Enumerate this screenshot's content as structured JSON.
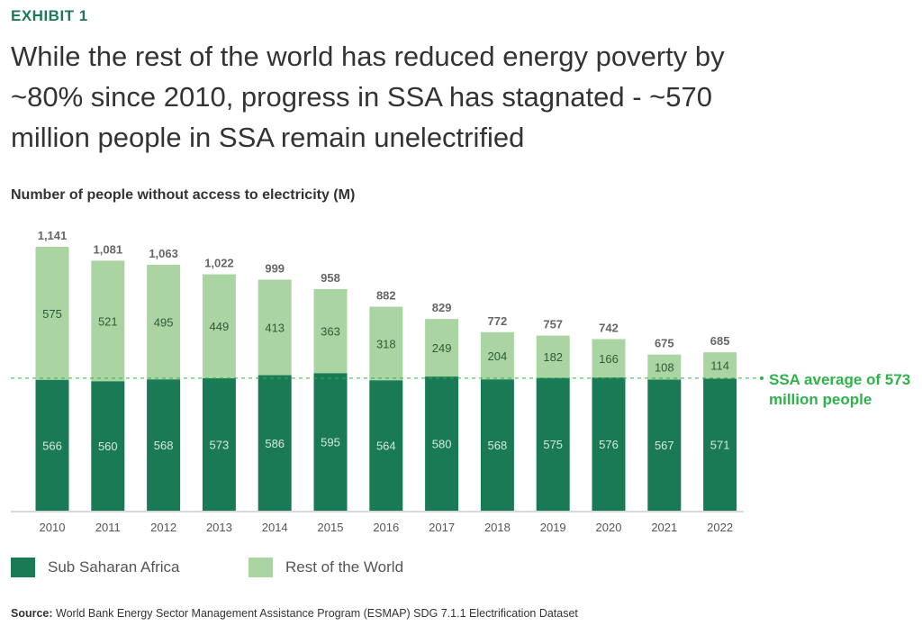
{
  "header": {
    "exhibit": "EXHIBIT 1",
    "title": "While the rest of the world has reduced energy poverty by ~80% since 2010, progress in SSA has stagnated - ~570 million people in SSA remain unelectrified"
  },
  "source": {
    "label": "Source:",
    "text": "World Bank Energy Sector Management Assistance Program (ESMAP) SDG 7.1.1 Electrification Dataset"
  },
  "chart_data": {
    "type": "bar",
    "stacked": true,
    "title": "Number of people without access to electricity (M)",
    "categories": [
      "2010",
      "2011",
      "2012",
      "2013",
      "2014",
      "2015",
      "2016",
      "2017",
      "2018",
      "2019",
      "2020",
      "2021",
      "2022"
    ],
    "series": [
      {
        "name": "Sub Saharan Africa",
        "color": "#1a7a55",
        "values": [
          566,
          560,
          568,
          573,
          586,
          595,
          564,
          580,
          568,
          575,
          576,
          567,
          571
        ]
      },
      {
        "name": "Rest of the World",
        "color": "#aad5a3",
        "values": [
          575,
          521,
          495,
          449,
          413,
          363,
          318,
          249,
          204,
          182,
          166,
          108,
          114
        ]
      }
    ],
    "totals": [
      "1,141",
      "1,081",
      "1,063",
      "1,022",
      "999",
      "958",
      "882",
      "829",
      "772",
      "757",
      "742",
      "675",
      "685"
    ],
    "reference_line": {
      "value": 573,
      "label": "SSA average of 573 million people",
      "color": "#2db34a"
    },
    "ylim": [
      0,
      1141
    ],
    "grid": false,
    "legend": "bottom-left"
  }
}
